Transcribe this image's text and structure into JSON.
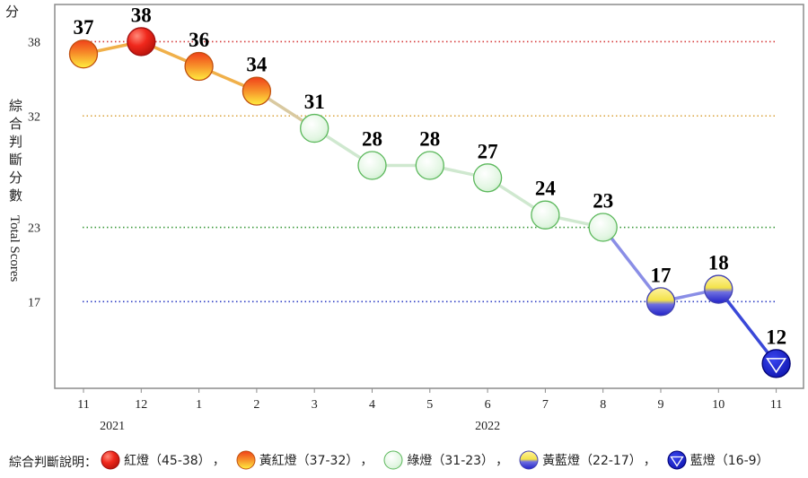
{
  "chart_data": {
    "type": "line",
    "ylabel_unit": "分",
    "ylabel_zh": "綜合判斷分數",
    "ylabel_en": "Total Scores",
    "yticks": [
      17,
      23,
      32,
      38
    ],
    "ylim": [
      10,
      41
    ],
    "categories": [
      "11",
      "12",
      "1",
      "2",
      "3",
      "4",
      "5",
      "6",
      "7",
      "8",
      "9",
      "10",
      "11"
    ],
    "years": [
      {
        "label": "2021",
        "under": [
          "11",
          "12"
        ]
      },
      {
        "label": "2022",
        "under": [
          "1",
          "2",
          "3",
          "4",
          "5",
          "6",
          "7",
          "8",
          "9",
          "10",
          "11"
        ]
      }
    ],
    "values": [
      37,
      38,
      36,
      34,
      31,
      28,
      28,
      27,
      24,
      23,
      17,
      18,
      12
    ],
    "lights": [
      "yellow-red",
      "red",
      "yellow-red",
      "yellow-red",
      "green",
      "green",
      "green",
      "green",
      "green",
      "green",
      "yellow-blue",
      "yellow-blue",
      "blue"
    ],
    "thresholds": [
      {
        "value": 38,
        "color": "#d63c3c"
      },
      {
        "value": 32,
        "color": "#d9a23a"
      },
      {
        "value": 23,
        "color": "#3d9a3d"
      },
      {
        "value": 17,
        "color": "#2f3fc4"
      }
    ],
    "grid": false,
    "legend": {
      "placement": "bottom",
      "title": "綜合判斷說明：",
      "separator": "，",
      "items": [
        {
          "light": "red",
          "label": "紅燈（45-38）"
        },
        {
          "light": "yellow-red",
          "label": "黃紅燈（37-32）"
        },
        {
          "light": "green",
          "label": "綠燈（31-23）"
        },
        {
          "light": "yellow-blue",
          "label": "黃藍燈（22-17）"
        },
        {
          "light": "blue",
          "label": "藍燈（16-9）"
        }
      ]
    }
  }
}
